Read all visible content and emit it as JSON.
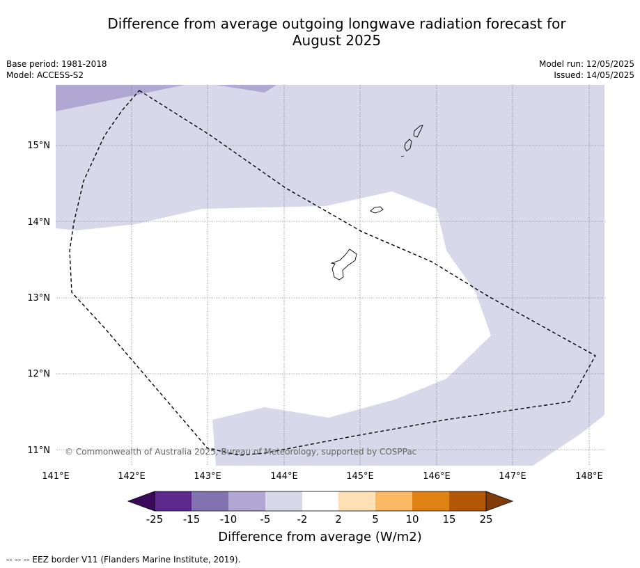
{
  "title_line1": "Difference from average outgoing longwave radiation forecast for",
  "title_line2": "August 2025",
  "meta_left": [
    "Base period: 1981-2018",
    "Model: ACCESS-S2"
  ],
  "meta_right": [
    "Model run: 12/05/2025",
    "Issued: 14/05/2025"
  ],
  "map": {
    "lon_ticks": [
      "141°E",
      "142°E",
      "143°E",
      "144°E",
      "145°E",
      "146°E",
      "147°E",
      "148°E"
    ],
    "lat_ticks": [
      "15°N",
      "14°N",
      "13°N",
      "12°N",
      "11°N"
    ],
    "copyright": "© Commonwealth of Australia 2025, Bureau of Meteorology, supported by COSPPac"
  },
  "colorbar": {
    "title": "Difference from average (W/m2)",
    "tick_labels": [
      "-25",
      "-15",
      "-10",
      "-5",
      "-2",
      "2",
      "5",
      "10",
      "15",
      "25"
    ],
    "colors": {
      "under": "#3b0a5a",
      "c1": "#5b2a8c",
      "c2": "#8273b0",
      "c3": "#b0a8d2",
      "c4": "#d8d8ea",
      "c5": "#ffffff",
      "c6": "#fde0b6",
      "c7": "#fdb863",
      "c8": "#e08214",
      "c9": "#b35806",
      "over": "#7f3b08"
    }
  },
  "footer": "--  --  -- EEZ border V11 (Flanders Marine Institute, 2019)."
}
